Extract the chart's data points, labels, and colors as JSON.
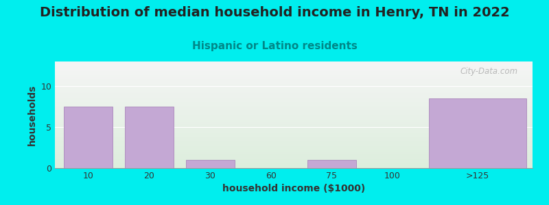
{
  "title": "Distribution of median household income in Henry, TN in 2022",
  "subtitle": "Hispanic or Latino residents",
  "xlabel": "household income ($1000)",
  "ylabel": "households",
  "background_color": "#00EEEE",
  "plot_bg_top": "#F5F5F5",
  "plot_bg_bottom": "#DDEEDD",
  "bar_color": "#C4A8D4",
  "bar_edge_color": "#B090C0",
  "categories": [
    "10",
    "20",
    "30",
    "60",
    "75",
    "100",
    ">125"
  ],
  "values": [
    7.5,
    7.5,
    1.0,
    0,
    1.0,
    0,
    8.5
  ],
  "ylim": [
    0,
    13
  ],
  "yticks": [
    0,
    5,
    10
  ],
  "title_fontsize": 14,
  "subtitle_fontsize": 11,
  "axis_label_fontsize": 10,
  "tick_fontsize": 9,
  "title_color": "#222222",
  "subtitle_color": "#008888",
  "axis_label_color": "#333333",
  "watermark": "City-Data.com"
}
